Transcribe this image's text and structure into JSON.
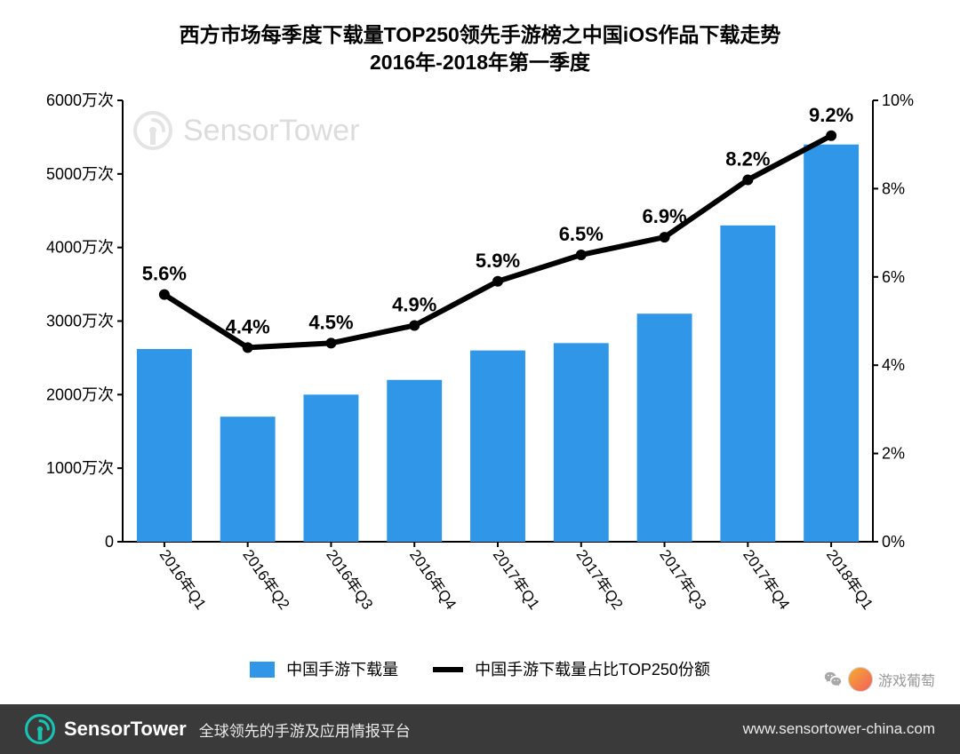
{
  "title_line1": "西方市场每季度下载量TOP250领先手游榜之中国iOS作品下载走势",
  "title_line2": "2016年-2018年第一季度",
  "title_fontsize": 23,
  "chart": {
    "type": "bar+line",
    "categories": [
      "2016年Q1",
      "2016年Q2",
      "2016年Q3",
      "2016年Q4",
      "2017年Q1",
      "2017年Q2",
      "2017年Q3",
      "2017年Q4",
      "2018年Q1"
    ],
    "bars": {
      "label": "中国手游下载量",
      "values": [
        2620,
        1700,
        2000,
        2200,
        2600,
        2700,
        3100,
        4300,
        5400
      ],
      "color": "#2f96e8",
      "bar_width_ratio": 0.66
    },
    "line": {
      "label": "中国手游下载量占比TOP250份额",
      "values_pct": [
        5.6,
        4.4,
        4.5,
        4.9,
        5.9,
        6.5,
        6.9,
        8.2,
        9.2
      ],
      "color": "#000000",
      "line_width": 6,
      "marker_radius": 6,
      "label_fontsize": 22,
      "label_fontweight": 800
    },
    "y_left": {
      "min": 0,
      "max": 6000,
      "step": 1000,
      "tick_labels": [
        "0",
        "1000万次",
        "2000万次",
        "3000万次",
        "4000万次",
        "5000万次",
        "6000万次"
      ],
      "fontsize": 18
    },
    "y_right": {
      "min": 0,
      "max": 10,
      "step": 2,
      "tick_labels": [
        "0%",
        "2%",
        "4%",
        "6%",
        "8%",
        "10%"
      ],
      "fontsize": 18
    },
    "x_axis": {
      "fontsize": 17,
      "rotate_deg": 55
    },
    "plot": {
      "background": "#ffffff",
      "axis_color": "#000000",
      "tick_len": 6
    },
    "legend_fontsize": 18
  },
  "watermark": {
    "text": "SensorTower",
    "color": "#b2b2b2"
  },
  "footer": {
    "bg": "#3a3a3a",
    "brand": "SensorTower",
    "brand_icon_color": "#19c3b2",
    "tagline": "全球领先的手游及应用情报平台",
    "url": "www.sensortower-china.com"
  },
  "wx": {
    "name": "游戏葡萄"
  }
}
